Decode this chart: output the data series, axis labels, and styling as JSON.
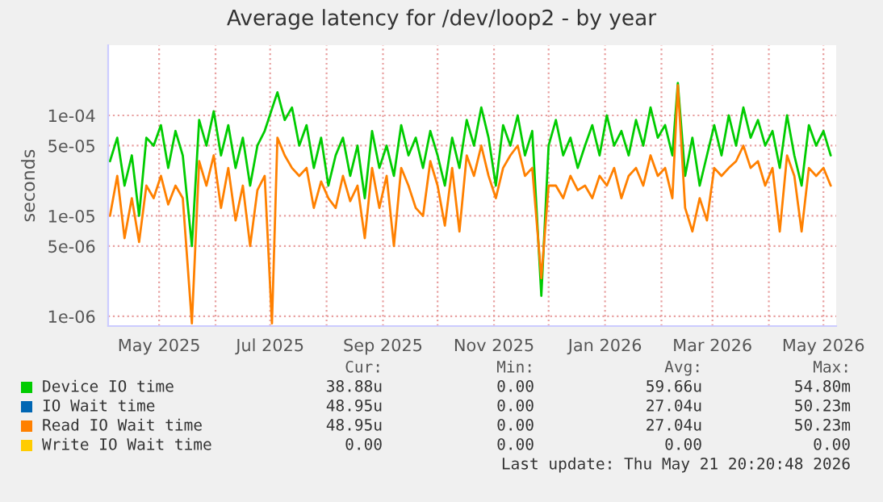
{
  "chart_data": {
    "type": "line",
    "title": "Average latency for /dev/loop2 - by year",
    "ylabel": "seconds",
    "log": "y",
    "grid": true,
    "legend": "bottom",
    "marker": "none",
    "line_style": "solid",
    "ylim": [
      8e-07,
      0.0005
    ],
    "yticks": [
      {
        "value": 1e-06,
        "label": "1e-06"
      },
      {
        "value": 5e-06,
        "label": "5e-06"
      },
      {
        "value": 1e-05,
        "label": "1e-05"
      },
      {
        "value": 5e-05,
        "label": "5e-05"
      },
      {
        "value": 0.0001,
        "label": "1e-04"
      }
    ],
    "xlim": [
      "2025-04-03",
      "2026-05-08"
    ],
    "xticks": [
      {
        "value": "2025-05-01",
        "label": "May 2025"
      },
      {
        "value": "2025-06-01",
        "label": null
      },
      {
        "value": "2025-07-01",
        "label": "Jul 2025"
      },
      {
        "value": "2025-08-01",
        "label": null
      },
      {
        "value": "2025-09-01",
        "label": "Sep 2025"
      },
      {
        "value": "2025-10-01",
        "label": null
      },
      {
        "value": "2025-11-01",
        "label": "Nov 2025"
      },
      {
        "value": "2025-12-01",
        "label": null
      },
      {
        "value": "2026-01-01",
        "label": "Jan 2026"
      },
      {
        "value": "2026-02-01",
        "label": null
      },
      {
        "value": "2026-03-01",
        "label": "Mar 2026"
      },
      {
        "value": "2026-04-01",
        "label": null
      },
      {
        "value": "2026-05-01",
        "label": "May 2026"
      }
    ],
    "x": [
      "2025-04-04",
      "2025-04-08",
      "2025-04-12",
      "2025-04-16",
      "2025-04-20",
      "2025-04-24",
      "2025-04-28",
      "2025-05-02",
      "2025-05-06",
      "2025-05-10",
      "2025-05-14",
      "2025-05-19",
      "2025-05-23",
      "2025-05-27",
      "2025-05-31",
      "2025-06-04",
      "2025-06-08",
      "2025-06-12",
      "2025-06-16",
      "2025-06-20",
      "2025-06-24",
      "2025-06-28",
      "2025-07-02",
      "2025-07-05",
      "2025-07-09",
      "2025-07-13",
      "2025-07-17",
      "2025-07-21",
      "2025-07-25",
      "2025-07-29",
      "2025-08-02",
      "2025-08-06",
      "2025-08-10",
      "2025-08-14",
      "2025-08-18",
      "2025-08-22",
      "2025-08-26",
      "2025-08-30",
      "2025-09-03",
      "2025-09-07",
      "2025-09-11",
      "2025-09-15",
      "2025-09-19",
      "2025-09-23",
      "2025-09-27",
      "2025-10-01",
      "2025-10-05",
      "2025-10-09",
      "2025-10-13",
      "2025-10-17",
      "2025-10-21",
      "2025-10-25",
      "2025-10-29",
      "2025-11-02",
      "2025-11-06",
      "2025-11-10",
      "2025-11-14",
      "2025-11-18",
      "2025-11-22",
      "2025-11-27",
      "2025-12-01",
      "2025-12-05",
      "2025-12-09",
      "2025-12-13",
      "2025-12-17",
      "2025-12-21",
      "2025-12-25",
      "2025-12-29",
      "2026-01-02",
      "2026-01-06",
      "2026-01-10",
      "2026-01-14",
      "2026-01-18",
      "2026-01-22",
      "2026-01-26",
      "2026-01-30",
      "2026-02-03",
      "2026-02-07",
      "2026-02-10",
      "2026-02-14",
      "2026-02-18",
      "2026-02-22",
      "2026-02-26",
      "2026-03-02",
      "2026-03-06",
      "2026-03-10",
      "2026-03-14",
      "2026-03-18",
      "2026-03-22",
      "2026-03-26",
      "2026-03-30",
      "2026-04-03",
      "2026-04-07",
      "2026-04-11",
      "2026-04-15",
      "2026-04-19",
      "2026-04-23",
      "2026-04-27",
      "2026-05-01",
      "2026-05-05"
    ],
    "series": [
      {
        "name": "Device IO time",
        "color": "#00cc00",
        "values": [
          3.5e-05,
          6e-05,
          2e-05,
          4e-05,
          1e-05,
          6e-05,
          5e-05,
          8e-05,
          3e-05,
          7e-05,
          4e-05,
          5e-06,
          9e-05,
          5e-05,
          0.00011,
          4e-05,
          8e-05,
          3e-05,
          6e-05,
          2e-05,
          5e-05,
          7e-05,
          null,
          0.00017,
          9e-05,
          0.00012,
          5e-05,
          8e-05,
          3e-05,
          6e-05,
          2e-05,
          4e-05,
          6e-05,
          2.5e-05,
          5e-05,
          1.5e-05,
          7e-05,
          3e-05,
          5e-05,
          2.5e-05,
          8e-05,
          4e-05,
          6e-05,
          3e-05,
          7e-05,
          4e-05,
          2e-05,
          6e-05,
          3e-05,
          9e-05,
          5e-05,
          0.00012,
          6e-05,
          2e-05,
          8e-05,
          5e-05,
          0.0001,
          4e-05,
          7e-05,
          1.6e-06,
          5e-05,
          9e-05,
          4e-05,
          6e-05,
          3e-05,
          5e-05,
          8e-05,
          4e-05,
          0.0001,
          5e-05,
          7e-05,
          4e-05,
          9e-05,
          5e-05,
          0.00012,
          6e-05,
          8e-05,
          4e-05,
          0.00021,
          2.5e-05,
          6e-05,
          2e-05,
          4e-05,
          8e-05,
          4e-05,
          0.0001,
          5e-05,
          0.00012,
          6e-05,
          9e-05,
          5e-05,
          7e-05,
          3e-05,
          0.0001,
          4e-05,
          2e-05,
          8e-05,
          5e-05,
          7e-05,
          4e-05
        ]
      },
      {
        "name": "IO Wait time",
        "color": "#0066b3",
        "values": [
          null,
          null,
          null,
          null,
          null,
          null,
          null,
          null,
          null,
          null,
          null,
          null,
          null,
          null,
          null,
          null,
          null,
          null,
          null,
          null,
          null,
          null,
          null,
          null,
          null,
          null,
          null,
          null,
          null,
          null,
          null,
          null,
          null,
          null,
          null,
          null,
          null,
          null,
          null,
          null,
          null,
          null,
          null,
          null,
          null,
          null,
          null,
          null,
          null,
          null,
          null,
          null,
          null,
          null,
          null,
          null,
          null,
          null,
          null,
          null,
          null,
          null,
          null,
          null,
          null,
          null,
          null,
          null,
          null,
          null,
          null,
          null,
          null,
          null,
          null,
          null,
          null,
          null,
          null,
          null,
          null,
          null,
          null,
          null,
          null,
          null,
          null,
          null,
          null,
          null,
          null,
          null,
          null,
          null,
          null,
          null,
          null,
          null,
          null,
          null
        ]
      },
      {
        "name": "Read IO Wait time",
        "color": "#ff8000",
        "values": [
          1e-05,
          2.5e-05,
          6e-06,
          1.5e-05,
          5.5e-06,
          2e-05,
          1.5e-05,
          2.5e-05,
          1.3e-05,
          2e-05,
          1.5e-05,
          8.5e-07,
          3.5e-05,
          2e-05,
          4e-05,
          1.2e-05,
          3e-05,
          9e-06,
          2e-05,
          5e-06,
          1.8e-05,
          2.5e-05,
          8.5e-07,
          6e-05,
          4e-05,
          3e-05,
          2.5e-05,
          3e-05,
          1.2e-05,
          2.2e-05,
          1.5e-05,
          1.2e-05,
          2.5e-05,
          1.4e-05,
          2e-05,
          6e-06,
          3e-05,
          1.2e-05,
          2.5e-05,
          5e-06,
          3e-05,
          2e-05,
          1.2e-05,
          1e-05,
          3.5e-05,
          2e-05,
          8e-06,
          3e-05,
          7e-06,
          4e-05,
          2.5e-05,
          5e-05,
          2.5e-05,
          1.5e-05,
          3e-05,
          4e-05,
          5e-05,
          2.5e-05,
          3e-05,
          2.4e-06,
          2e-05,
          2e-05,
          1.5e-05,
          2.5e-05,
          1.8e-05,
          2e-05,
          1.5e-05,
          2.5e-05,
          2e-05,
          3e-05,
          1.5e-05,
          2.5e-05,
          3e-05,
          2e-05,
          4e-05,
          2.5e-05,
          3e-05,
          1.5e-05,
          0.0002,
          1.2e-05,
          7e-06,
          1.5e-05,
          9e-06,
          3e-05,
          2.5e-05,
          3e-05,
          3.5e-05,
          5e-05,
          3e-05,
          3.5e-05,
          2e-05,
          3e-05,
          7e-06,
          4e-05,
          2.5e-05,
          7e-06,
          3e-05,
          2.5e-05,
          3e-05,
          2e-05
        ]
      },
      {
        "name": "Write IO Wait time",
        "color": "#ffcc00",
        "values": [
          null,
          null,
          null,
          null,
          null,
          null,
          null,
          null,
          null,
          null,
          null,
          null,
          null,
          null,
          null,
          null,
          null,
          null,
          null,
          null,
          null,
          null,
          null,
          null,
          null,
          null,
          null,
          null,
          null,
          null,
          null,
          null,
          null,
          null,
          null,
          null,
          null,
          null,
          null,
          null,
          null,
          null,
          null,
          null,
          null,
          null,
          null,
          null,
          null,
          null,
          null,
          null,
          null,
          null,
          null,
          null,
          null,
          null,
          null,
          null,
          null,
          null,
          null,
          null,
          null,
          null,
          null,
          null,
          null,
          null,
          null,
          null,
          null,
          null,
          null,
          null,
          null,
          null,
          null,
          null,
          null,
          null,
          null,
          null,
          null,
          null,
          null,
          null,
          null,
          null,
          null,
          null,
          null,
          null,
          null,
          null,
          null,
          null,
          null,
          null
        ]
      }
    ],
    "annotations": [
      "Cur:",
      "Min:",
      "Avg:",
      "Max:",
      "38.88u",
      "0.00",
      "59.66u",
      "54.80m",
      "48.95u",
      "0.00",
      "27.04u",
      "50.23m",
      "48.95u",
      "0.00",
      "27.04u",
      "50.23m",
      "0.00",
      "0.00",
      "0.00",
      "0.00",
      "Last update: Thu May 21 20:20:48 2026"
    ]
  }
}
